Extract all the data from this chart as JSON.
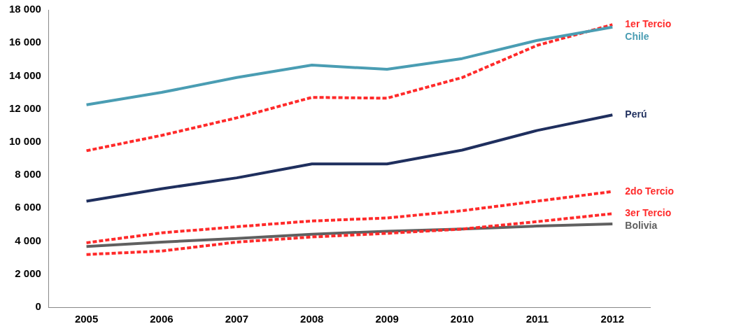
{
  "chart_data": {
    "type": "line",
    "categories": [
      "2005",
      "2006",
      "2007",
      "2008",
      "2009",
      "2010",
      "2011",
      "2012"
    ],
    "series": [
      {
        "name": "Chile",
        "color": "#4a9db3",
        "line_style": "solid",
        "values": [
          12250,
          13000,
          13900,
          14650,
          14400,
          15050,
          16150,
          16950
        ]
      },
      {
        "name": "1er Tercio",
        "color": "#ff2a2a",
        "line_style": "dashed",
        "values": [
          9470,
          10400,
          11460,
          12700,
          12650,
          13900,
          15850,
          17100
        ]
      },
      {
        "name": "Perú",
        "color": "#1f2f5e",
        "line_style": "solid",
        "values": [
          6420,
          7170,
          7830,
          8670,
          8670,
          9510,
          10700,
          11640
        ]
      },
      {
        "name": "2do Tercio",
        "color": "#ff2a2a",
        "line_style": "dashed",
        "values": [
          3900,
          4500,
          4870,
          5220,
          5400,
          5840,
          6420,
          7000
        ]
      },
      {
        "name": "3er Tercio",
        "color": "#ff2a2a",
        "line_style": "dashed",
        "values": [
          3190,
          3400,
          3940,
          4250,
          4470,
          4730,
          5180,
          5660
        ]
      },
      {
        "name": "Bolivia",
        "color": "#606060",
        "line_style": "solid",
        "values": [
          3670,
          3940,
          4160,
          4420,
          4600,
          4730,
          4910,
          5040
        ]
      }
    ],
    "ylim": [
      0,
      18000
    ],
    "yticks": [
      {
        "value": 0,
        "label": "0"
      },
      {
        "value": 2000,
        "label": "2 000"
      },
      {
        "value": 4000,
        "label": "4 000"
      },
      {
        "value": 6000,
        "label": "6 000"
      },
      {
        "value": 8000,
        "label": "8 000"
      },
      {
        "value": 10000,
        "label": "10 000"
      },
      {
        "value": 12000,
        "label": "12 000"
      },
      {
        "value": 14000,
        "label": "14 000"
      },
      {
        "value": 16000,
        "label": "16 000"
      },
      {
        "value": 18000,
        "label": "18 000"
      }
    ],
    "grid": false,
    "legend": false,
    "marker": "none"
  }
}
